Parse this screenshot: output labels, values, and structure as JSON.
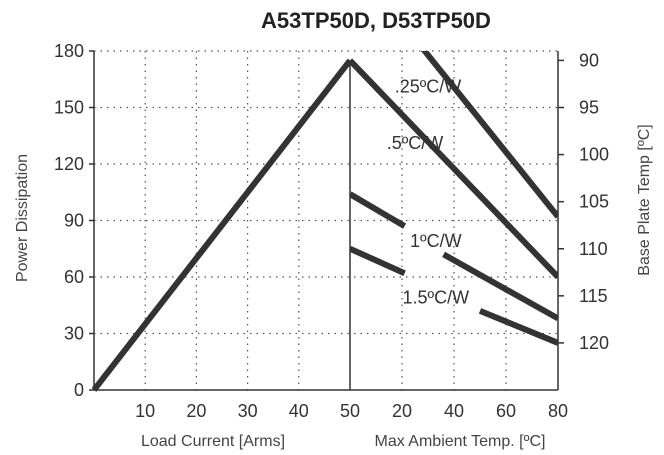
{
  "chart_data": {
    "type": "line",
    "title": "A53TP50D, D53TP50D",
    "ylabel": "Power Dissipation",
    "ylabel_right": "Base Plate Temp [ºC]",
    "xlabel_left": "Load Current  [Arms]",
    "xlabel_right": "Max Ambient Temp. [ºC]",
    "ylim": [
      0,
      180
    ],
    "y_ticks": [
      0,
      30,
      60,
      90,
      120,
      150,
      180
    ],
    "left_panel": {
      "xlim": [
        0,
        50
      ],
      "x_ticks": [
        10,
        20,
        30,
        40,
        50
      ],
      "series": [
        {
          "x": [
            0,
            50
          ],
          "y": [
            0,
            175
          ]
        }
      ]
    },
    "right_panel": {
      "xlim": [
        0,
        80
      ],
      "x_ticks": [
        20,
        40,
        60,
        80
      ],
      "right_axis_ticks": [
        {
          "label": "90",
          "y": 175
        },
        {
          "label": "95",
          "y": 150
        },
        {
          "label": "100",
          "y": 125
        },
        {
          "label": "105",
          "y": 100
        },
        {
          "label": "110",
          "y": 75
        },
        {
          "label": "115",
          "y": 50
        },
        {
          "label": "120",
          "y": 25
        }
      ],
      "series": [
        {
          "name": ".25ºC/W",
          "segments": [
            {
              "x": [
                27,
                80
              ],
              "y": [
                183,
                92
              ]
            }
          ]
        },
        {
          "name": ".5ºC/W",
          "segments": [
            {
              "x": [
                0,
                80
              ],
              "y": [
                175,
                60
              ]
            }
          ]
        },
        {
          "name": "1ºC/W",
          "segments": [
            {
              "x": [
                0,
                21
              ],
              "y": [
                104,
                87
              ]
            },
            {
              "x": [
                36,
                80
              ],
              "y": [
                72,
                38
              ]
            }
          ]
        },
        {
          "name": "1.5ºC/W",
          "segments": [
            {
              "x": [
                0,
                21
              ],
              "y": [
                75,
                62
              ]
            },
            {
              "x": [
                50,
                80
              ],
              "y": [
                42,
                25
              ]
            }
          ]
        }
      ],
      "labels": [
        {
          "text": ".25ºC/W",
          "x": 30,
          "y": 158
        },
        {
          "text": ".5ºC/W",
          "x": 25,
          "y": 128
        },
        {
          "text": "1ºC/W",
          "x": 33,
          "y": 76
        },
        {
          "text": "1.5ºC/W",
          "x": 33,
          "y": 46
        }
      ]
    },
    "grid": true
  }
}
